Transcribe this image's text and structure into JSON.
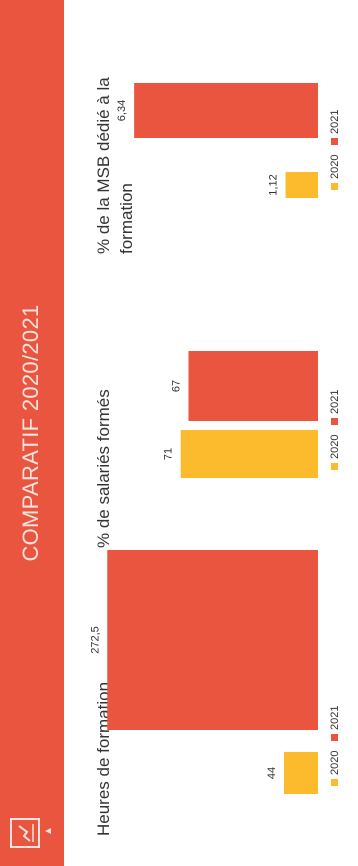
{
  "banner": {
    "title": "COMPARATIF 2020/2021",
    "accent": "#e9553f"
  },
  "icons": {
    "logo": "line-chart-icon"
  },
  "colors": {
    "series_2020": "#fcbb2c",
    "series_2021": "#e9553f"
  },
  "chart_data": [
    {
      "type": "bar",
      "title": "Heures de formation",
      "categories": [
        "2020",
        "2021"
      ],
      "values": [
        44,
        272.5
      ],
      "value_labels": [
        "44",
        "272,5"
      ],
      "legend": [
        "2020",
        "2021"
      ],
      "legend_position": "bottom",
      "ylim": [
        0,
        300
      ],
      "grid": false
    },
    {
      "type": "bar",
      "title": "% de salariés formés",
      "categories": [
        "2020",
        "2021"
      ],
      "values": [
        71,
        67
      ],
      "value_labels": [
        "71",
        "67"
      ],
      "legend": [
        "2020",
        "2021"
      ],
      "legend_position": "bottom",
      "ylim": [
        0,
        120
      ],
      "grid": false
    },
    {
      "type": "bar",
      "title": "% de la MSB dédié à la formation",
      "title_lines": [
        "% de la MSB dédié à la",
        "formation"
      ],
      "categories": [
        "2020",
        "2021"
      ],
      "values": [
        1.12,
        6.34
      ],
      "value_labels": [
        "1,12",
        "6,34"
      ],
      "legend": [
        "2020",
        "2021"
      ],
      "legend_position": "bottom",
      "ylim": [
        0,
        8
      ],
      "grid": false
    }
  ]
}
